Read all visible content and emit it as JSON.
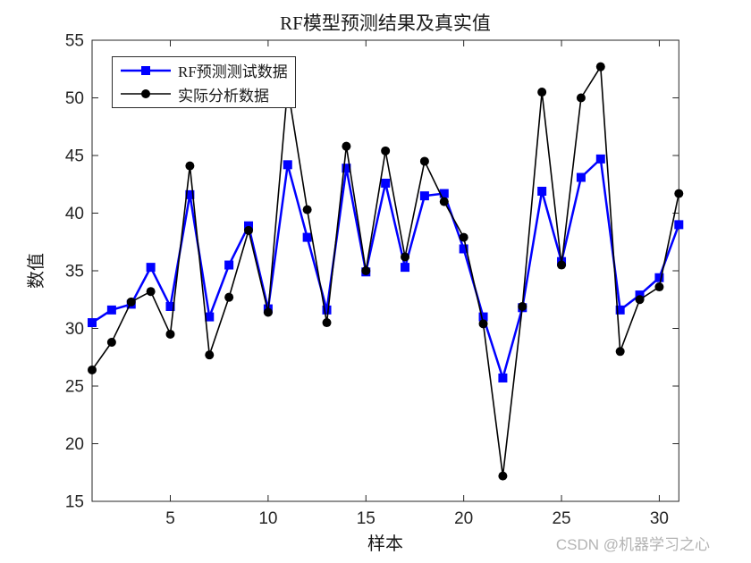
{
  "title": "RF模型预测结果及真实值",
  "watermark": "CSDN @机器学习之心",
  "chart_data": {
    "type": "line",
    "title": "RF模型预测结果及真实值",
    "xlabel": "样本",
    "ylabel": "数值",
    "xlim": [
      1,
      31
    ],
    "ylim": [
      15,
      55
    ],
    "xticks": [
      5,
      10,
      15,
      20,
      25,
      30
    ],
    "yticks": [
      15,
      20,
      25,
      30,
      35,
      40,
      45,
      50,
      55
    ],
    "grid": false,
    "legend_position": "top-left",
    "x": [
      1,
      2,
      3,
      4,
      5,
      6,
      7,
      8,
      9,
      10,
      11,
      12,
      13,
      14,
      15,
      16,
      17,
      18,
      19,
      20,
      21,
      22,
      23,
      24,
      25,
      26,
      27,
      28,
      29,
      30,
      31
    ],
    "series": [
      {
        "name": "RF预测测试数据",
        "color": "#0000FF",
        "marker": "square",
        "line_width": 2.5,
        "values": [
          30.5,
          31.6,
          32.1,
          35.3,
          31.9,
          41.6,
          31.0,
          35.5,
          38.9,
          31.7,
          44.2,
          37.9,
          31.6,
          43.9,
          34.9,
          42.6,
          35.3,
          41.5,
          41.7,
          36.9,
          31.0,
          25.7,
          31.8,
          41.9,
          35.8,
          43.1,
          44.7,
          31.6,
          32.9,
          34.4,
          39.0
        ]
      },
      {
        "name": "实际分析数据",
        "color": "#000000",
        "marker": "circle",
        "line_width": 1.6,
        "values": [
          26.4,
          28.8,
          32.3,
          33.2,
          29.5,
          44.1,
          27.7,
          32.7,
          38.5,
          31.4,
          50.9,
          40.3,
          30.5,
          45.8,
          35.0,
          45.4,
          36.2,
          44.5,
          41.0,
          37.9,
          30.4,
          17.2,
          31.9,
          50.5,
          35.5,
          50.0,
          52.7,
          28.0,
          32.5,
          33.6,
          41.7
        ]
      }
    ]
  }
}
